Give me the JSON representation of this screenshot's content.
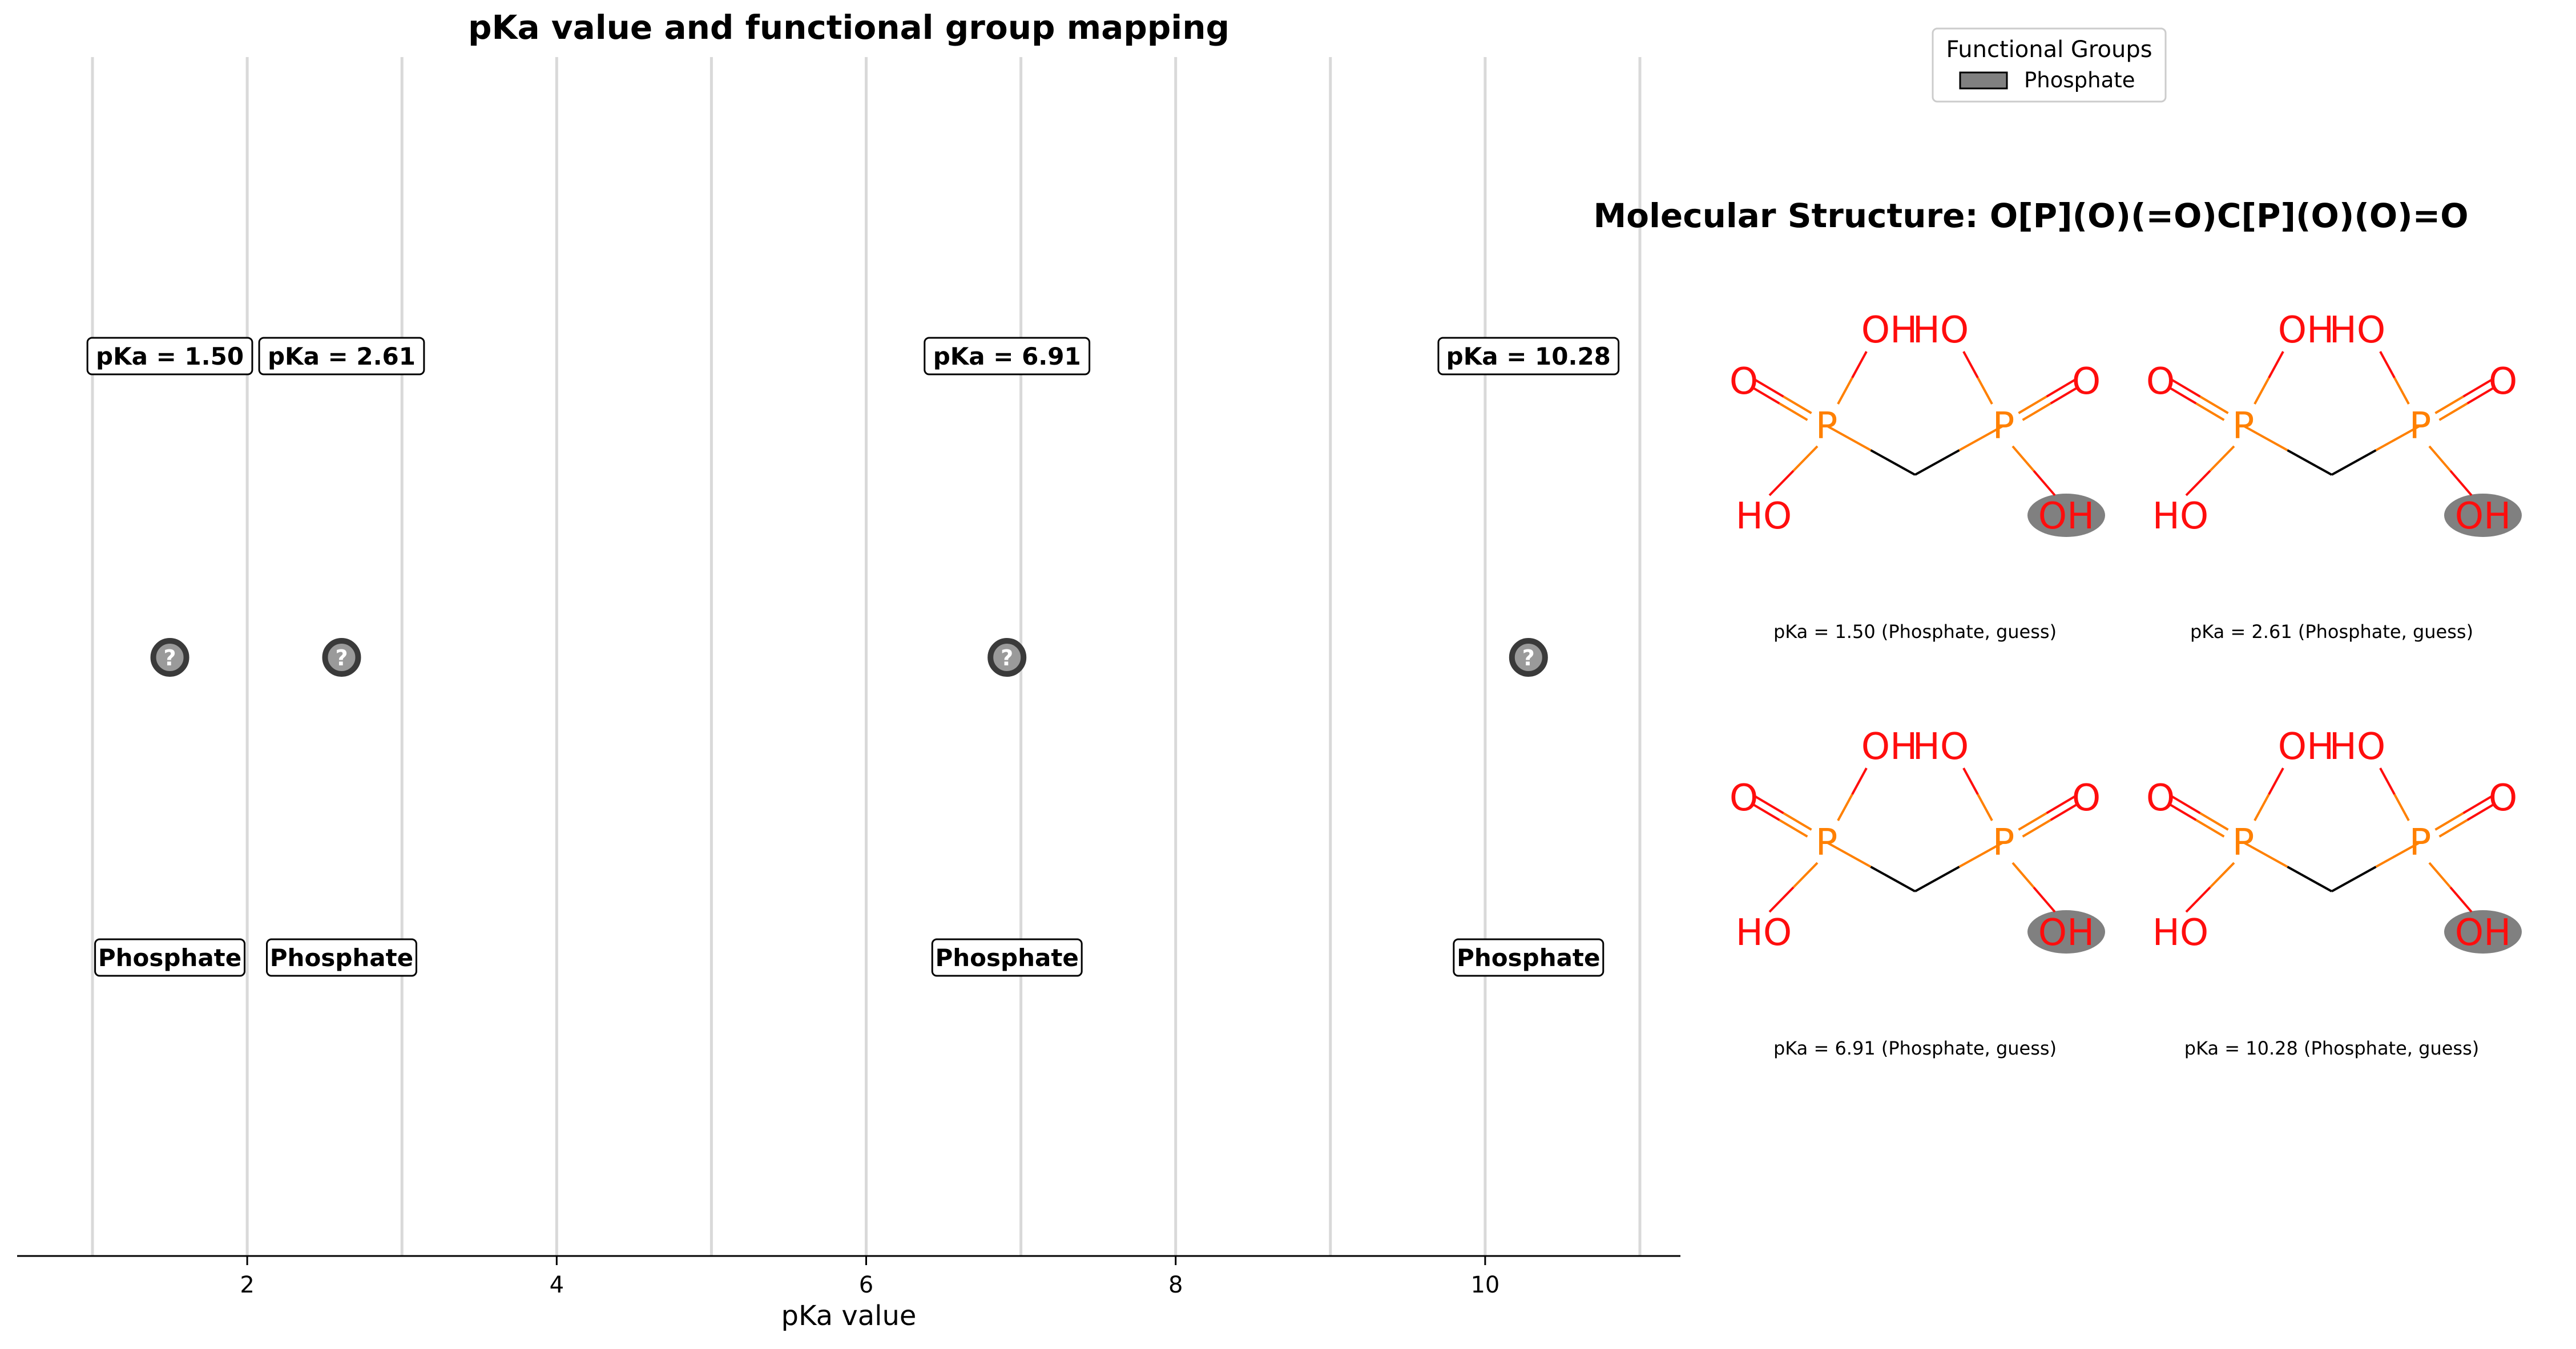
{
  "chart_data": {
    "type": "scatter",
    "title": "pKa value and functional group mapping",
    "xlabel": "pKa value",
    "xlim": [
      0.5,
      11.3
    ],
    "xticks": [
      2,
      4,
      6,
      8,
      10
    ],
    "vertical_gridlines_at": [
      1,
      2,
      3,
      4,
      5,
      6,
      7,
      8,
      9,
      10,
      11
    ],
    "grid": "vertical lines",
    "points": [
      {
        "x": 1.5,
        "pka_label": "pKa = 1.50",
        "marker": "?",
        "group": "Phosphate"
      },
      {
        "x": 2.61,
        "pka_label": "pKa = 2.61",
        "marker": "?",
        "group": "Phosphate"
      },
      {
        "x": 6.91,
        "pka_label": "pKa = 6.91",
        "marker": "?",
        "group": "Phosphate"
      },
      {
        "x": 10.28,
        "pka_label": "pKa = 10.28",
        "marker": "?",
        "group": "Phosphate"
      }
    ],
    "legend": {
      "title": "Functional Groups",
      "placement": "top-right",
      "entries": [
        {
          "label": "Phosphate",
          "color": "#808080"
        }
      ]
    }
  },
  "structure_panel": {
    "title": "Molecular Structure: O[P](O)(=O)C[P](O)(O)=O",
    "atom_labels": {
      "oxygen": "O",
      "hydroxyl": "OH",
      "hydroxyl_left": "HO",
      "phosphorus": "P"
    },
    "colors": {
      "oxygen": "#ff0d0d",
      "phosphorus": "#ff8000",
      "bond": "#000000",
      "highlight": "#808080"
    },
    "molecules": [
      {
        "caption": "pKa = 1.50 (Phosphate, guess)"
      },
      {
        "caption": "pKa = 2.61 (Phosphate, guess)"
      },
      {
        "caption": "pKa = 6.91 (Phosphate, guess)"
      },
      {
        "caption": "pKa = 10.28 (Phosphate, guess)"
      }
    ]
  }
}
